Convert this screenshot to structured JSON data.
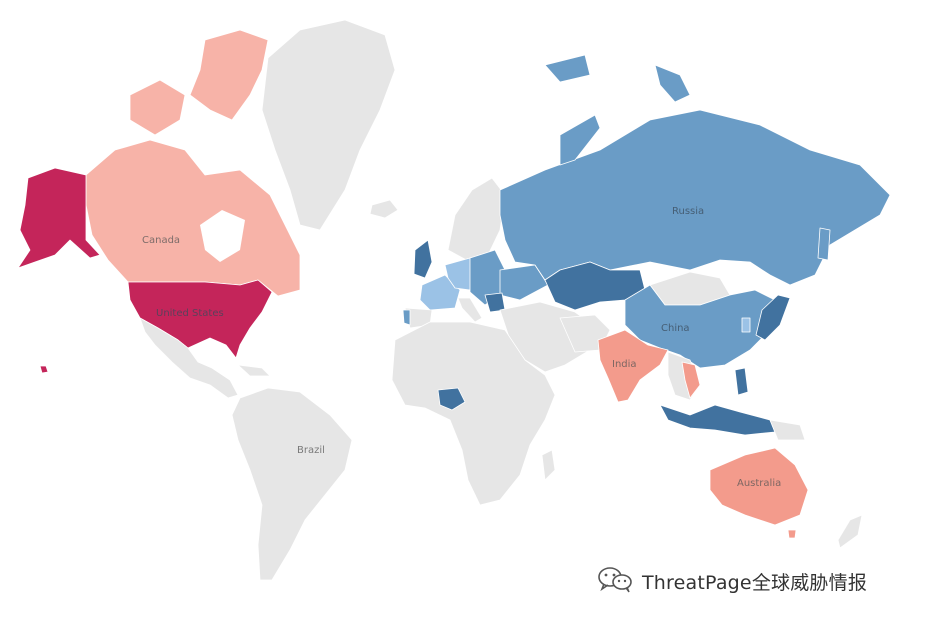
{
  "map": {
    "labels": {
      "russia": "Russia",
      "canada": "Canada",
      "united_states": "United States",
      "china": "China",
      "india": "India",
      "brazil": "Brazil",
      "australia": "Australia"
    },
    "colors": {
      "no_data": "#e6e6e6",
      "deep_red": "#c4255a",
      "light_red": "#f7b3a8",
      "salmon": "#f39b8c",
      "mid_blue": "#6a9cc6",
      "dark_blue": "#41729f",
      "light_blue": "#9bc2e6"
    }
  },
  "watermark": {
    "icon": "wechat-icon",
    "text": "ThreatPage全球威胁情报"
  }
}
